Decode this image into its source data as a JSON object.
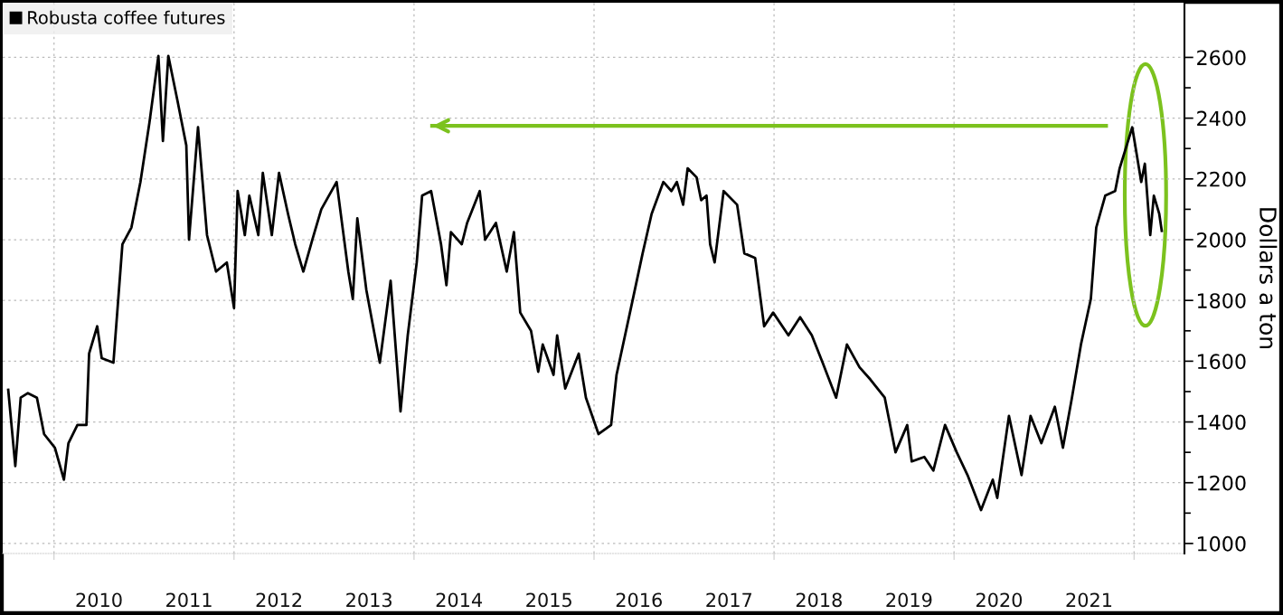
{
  "chart_data": {
    "type": "line",
    "ylabel": "Dollars a ton",
    "legend": "top left",
    "grid": true,
    "marker": "none",
    "line_style": "solid",
    "xlim": [
      2009.43,
      2022.56
    ],
    "ylim": [
      967,
      2780
    ],
    "xticks": [
      {
        "value": 2010,
        "label": null
      },
      {
        "value": 2012,
        "label": null
      },
      {
        "value": 2014,
        "label": null
      },
      {
        "value": 2016,
        "label": null
      },
      {
        "value": 2018,
        "label": null
      },
      {
        "value": 2020,
        "label": null
      },
      {
        "value": 2022,
        "label": null
      },
      {
        "value": 2010.5,
        "label": "2010"
      },
      {
        "value": 2011.5,
        "label": "2011"
      },
      {
        "value": 2012.5,
        "label": "2012"
      },
      {
        "value": 2013.5,
        "label": "2013"
      },
      {
        "value": 2014.5,
        "label": "2014"
      },
      {
        "value": 2015.5,
        "label": "2015"
      },
      {
        "value": 2016.5,
        "label": "2016"
      },
      {
        "value": 2017.5,
        "label": "2017"
      },
      {
        "value": 2018.5,
        "label": "2018"
      },
      {
        "value": 2019.5,
        "label": "2019"
      },
      {
        "value": 2020.5,
        "label": "2020"
      },
      {
        "value": 2021.5,
        "label": "2021"
      }
    ],
    "yticks": [
      1000,
      {
        "value": 1100,
        "label": null
      },
      1200,
      {
        "value": 1300,
        "label": null
      },
      1400,
      {
        "value": 1500,
        "label": null
      },
      1600,
      {
        "value": 1700,
        "label": null
      },
      1800,
      {
        "value": 1900,
        "label": null
      },
      2000,
      {
        "value": 2100,
        "label": null
      },
      2200,
      {
        "value": 2300,
        "label": null
      },
      2400,
      {
        "value": 2500,
        "label": null
      },
      2600
    ],
    "series": [
      {
        "type": "line",
        "color": "#7cc21e",
        "x": [
          2014.18,
          2021.71
        ],
        "values": [
          2375,
          2375
        ]
      },
      {
        "name": "Robusta coffee futures",
        "color": "#000000",
        "x": [
          2009.49,
          2009.57,
          2009.63,
          2009.71,
          2009.81,
          2009.89,
          2010.01,
          2010.11,
          2010.16,
          2010.26,
          2010.36,
          2010.39,
          2010.48,
          2010.53,
          2010.66,
          2010.76,
          2010.86,
          2010.96,
          2011.06,
          2011.16,
          2011.21,
          2011.27,
          2011.37,
          2011.47,
          2011.5,
          2011.6,
          2011.7,
          2011.8,
          2011.92,
          2012.0,
          2012.04,
          2012.12,
          2012.17,
          2012.27,
          2012.32,
          2012.42,
          2012.5,
          2012.6,
          2012.68,
          2012.77,
          2012.87,
          2012.97,
          2013.14,
          2013.27,
          2013.32,
          2013.37,
          2013.47,
          2013.62,
          2013.74,
          2013.85,
          2013.93,
          2014.03,
          2014.09,
          2014.19,
          2014.3,
          2014.36,
          2014.41,
          2014.53,
          2014.59,
          2014.73,
          2014.79,
          2014.91,
          2015.03,
          2015.11,
          2015.18,
          2015.3,
          2015.38,
          2015.43,
          2015.55,
          2015.59,
          2015.68,
          2015.83,
          2015.91,
          2016.05,
          2016.19,
          2016.25,
          2016.41,
          2016.54,
          2016.64,
          2016.77,
          2016.86,
          2016.92,
          2016.99,
          2017.04,
          2017.14,
          2017.19,
          2017.25,
          2017.29,
          2017.34,
          2017.44,
          2017.59,
          2017.67,
          2017.79,
          2017.89,
          2017.99,
          2018.16,
          2018.29,
          2018.42,
          2018.54,
          2018.69,
          2018.81,
          2018.95,
          2019.07,
          2019.23,
          2019.35,
          2019.48,
          2019.53,
          2019.67,
          2019.77,
          2019.9,
          2020.03,
          2020.15,
          2020.3,
          2020.43,
          2020.48,
          2020.61,
          2020.75,
          2020.85,
          2020.97,
          2021.12,
          2021.21,
          2021.31,
          2021.41,
          2021.52,
          2021.58,
          2021.68,
          2021.79,
          2021.84,
          2021.98,
          2022.08,
          2022.12,
          2022.18,
          2022.22,
          2022.28,
          2022.31
        ],
        "values": [
          1510,
          1255,
          1480,
          1495,
          1480,
          1360,
          1315,
          1210,
          1330,
          1390,
          1390,
          1625,
          1715,
          1610,
          1595,
          1985,
          2040,
          2190,
          2385,
          2605,
          2325,
          2605,
          2460,
          2310,
          2000,
          2370,
          2015,
          1895,
          1925,
          1775,
          2160,
          2015,
          2145,
          2015,
          2220,
          2015,
          2220,
          2085,
          1985,
          1895,
          2000,
          2100,
          2190,
          1895,
          1805,
          2070,
          1835,
          1595,
          1865,
          1435,
          1685,
          1925,
          2145,
          2160,
          1985,
          1850,
          2025,
          1985,
          2055,
          2160,
          2000,
          2055,
          1895,
          2025,
          1760,
          1700,
          1565,
          1655,
          1555,
          1685,
          1510,
          1625,
          1480,
          1360,
          1390,
          1555,
          1775,
          1955,
          2085,
          2190,
          2160,
          2190,
          2115,
          2235,
          2205,
          2130,
          2145,
          1985,
          1925,
          2160,
          2115,
          1955,
          1940,
          1715,
          1760,
          1685,
          1745,
          1685,
          1595,
          1480,
          1655,
          1580,
          1540,
          1480,
          1300,
          1390,
          1270,
          1285,
          1240,
          1390,
          1300,
          1225,
          1110,
          1210,
          1150,
          1420,
          1225,
          1420,
          1330,
          1450,
          1315,
          1480,
          1655,
          1805,
          2040,
          2145,
          2160,
          2235,
          2370,
          2190,
          2250,
          2015,
          2145,
          2085,
          2025
        ]
      }
    ]
  }
}
